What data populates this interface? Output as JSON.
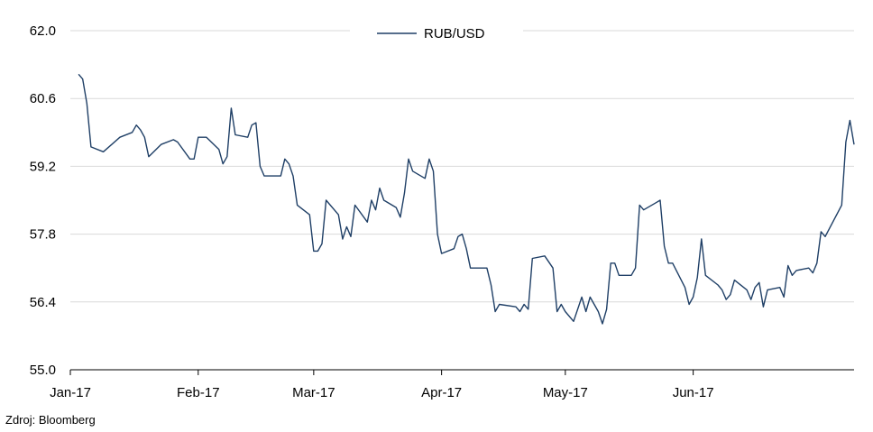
{
  "chart_data": {
    "type": "line",
    "series": [
      {
        "name": "RUB/USD",
        "color": "#1f3f66",
        "points": [
          [
            "2017-01-03",
            61.1
          ],
          [
            "2017-01-04",
            61.0
          ],
          [
            "2017-01-05",
            60.5
          ],
          [
            "2017-01-06",
            59.6
          ],
          [
            "2017-01-09",
            59.5
          ],
          [
            "2017-01-13",
            59.8
          ],
          [
            "2017-01-16",
            59.9
          ],
          [
            "2017-01-17",
            60.05
          ],
          [
            "2017-01-18",
            59.95
          ],
          [
            "2017-01-19",
            59.8
          ],
          [
            "2017-01-20",
            59.4
          ],
          [
            "2017-01-23",
            59.65
          ],
          [
            "2017-01-26",
            59.75
          ],
          [
            "2017-01-27",
            59.7
          ],
          [
            "2017-01-30",
            59.35
          ],
          [
            "2017-01-31",
            59.35
          ],
          [
            "2017-02-01",
            59.8
          ],
          [
            "2017-02-03",
            59.8
          ],
          [
            "2017-02-06",
            59.55
          ],
          [
            "2017-02-07",
            59.25
          ],
          [
            "2017-02-08",
            59.4
          ],
          [
            "2017-02-09",
            60.4
          ],
          [
            "2017-02-10",
            59.85
          ],
          [
            "2017-02-13",
            59.8
          ],
          [
            "2017-02-14",
            60.05
          ],
          [
            "2017-02-15",
            60.1
          ],
          [
            "2017-02-16",
            59.2
          ],
          [
            "2017-02-17",
            59.0
          ],
          [
            "2017-02-20",
            59.0
          ],
          [
            "2017-02-21",
            59.0
          ],
          [
            "2017-02-22",
            59.35
          ],
          [
            "2017-02-23",
            59.25
          ],
          [
            "2017-02-24",
            59.0
          ],
          [
            "2017-02-25",
            58.4
          ],
          [
            "2017-02-28",
            58.2
          ],
          [
            "2017-03-01",
            57.45
          ],
          [
            "2017-03-02",
            57.45
          ],
          [
            "2017-03-03",
            57.6
          ],
          [
            "2017-03-04",
            58.5
          ],
          [
            "2017-03-07",
            58.2
          ],
          [
            "2017-03-08",
            57.7
          ],
          [
            "2017-03-09",
            57.95
          ],
          [
            "2017-03-10",
            57.75
          ],
          [
            "2017-03-11",
            58.4
          ],
          [
            "2017-03-14",
            58.05
          ],
          [
            "2017-03-15",
            58.5
          ],
          [
            "2017-03-16",
            58.3
          ],
          [
            "2017-03-17",
            58.75
          ],
          [
            "2017-03-18",
            58.5
          ],
          [
            "2017-03-21",
            58.35
          ],
          [
            "2017-03-22",
            58.15
          ],
          [
            "2017-03-23",
            58.65
          ],
          [
            "2017-03-24",
            59.35
          ],
          [
            "2017-03-25",
            59.1
          ],
          [
            "2017-03-28",
            58.95
          ],
          [
            "2017-03-29",
            59.35
          ],
          [
            "2017-03-30",
            59.1
          ],
          [
            "2017-03-31",
            57.8
          ],
          [
            "2017-04-01",
            57.4
          ],
          [
            "2017-04-04",
            57.5
          ],
          [
            "2017-04-05",
            57.75
          ],
          [
            "2017-04-06",
            57.8
          ],
          [
            "2017-04-07",
            57.5
          ],
          [
            "2017-04-08",
            57.1
          ],
          [
            "2017-04-11",
            57.1
          ],
          [
            "2017-04-12",
            57.1
          ],
          [
            "2017-04-13",
            56.75
          ],
          [
            "2017-04-14",
            56.2
          ],
          [
            "2017-04-15",
            56.35
          ],
          [
            "2017-04-19",
            56.3
          ],
          [
            "2017-04-20",
            56.2
          ],
          [
            "2017-04-21",
            56.35
          ],
          [
            "2017-04-22",
            56.25
          ],
          [
            "2017-04-23",
            57.3
          ],
          [
            "2017-04-26",
            57.35
          ],
          [
            "2017-04-28",
            57.1
          ],
          [
            "2017-04-29",
            56.2
          ],
          [
            "2017-04-30",
            56.35
          ],
          [
            "2017-05-01",
            56.2
          ],
          [
            "2017-05-03",
            56.0
          ],
          [
            "2017-05-05",
            56.5
          ],
          [
            "2017-05-06",
            56.2
          ],
          [
            "2017-05-07",
            56.5
          ],
          [
            "2017-05-09",
            56.2
          ],
          [
            "2017-05-10",
            55.95
          ],
          [
            "2017-05-11",
            56.25
          ],
          [
            "2017-05-12",
            57.2
          ],
          [
            "2017-05-13",
            57.2
          ],
          [
            "2017-05-14",
            56.95
          ],
          [
            "2017-05-17",
            56.95
          ],
          [
            "2017-05-18",
            57.1
          ],
          [
            "2017-05-19",
            58.4
          ],
          [
            "2017-05-20",
            58.3
          ],
          [
            "2017-05-23",
            58.45
          ],
          [
            "2017-05-24",
            58.5
          ],
          [
            "2017-05-25",
            57.55
          ],
          [
            "2017-05-26",
            57.2
          ],
          [
            "2017-05-27",
            57.2
          ],
          [
            "2017-05-30",
            56.7
          ],
          [
            "2017-05-31",
            56.35
          ],
          [
            "2017-06-01",
            56.5
          ],
          [
            "2017-06-02",
            56.9
          ],
          [
            "2017-06-03",
            57.7
          ],
          [
            "2017-06-04",
            56.95
          ],
          [
            "2017-06-07",
            56.75
          ],
          [
            "2017-06-08",
            56.65
          ],
          [
            "2017-06-09",
            56.45
          ],
          [
            "2017-06-10",
            56.55
          ],
          [
            "2017-06-11",
            56.85
          ],
          [
            "2017-06-14",
            56.65
          ],
          [
            "2017-06-15",
            56.45
          ],
          [
            "2017-06-16",
            56.7
          ],
          [
            "2017-06-17",
            56.8
          ],
          [
            "2017-06-18",
            56.3
          ],
          [
            "2017-06-19",
            56.65
          ],
          [
            "2017-06-22",
            56.7
          ],
          [
            "2017-06-23",
            56.5
          ],
          [
            "2017-06-24",
            57.15
          ],
          [
            "2017-06-25",
            56.95
          ],
          [
            "2017-06-26",
            57.05
          ],
          [
            "2017-06-29",
            57.1
          ],
          [
            "2017-06-30",
            57.0
          ],
          [
            "2017-07-01",
            57.2
          ],
          [
            "2017-07-02",
            57.85
          ],
          [
            "2017-07-03",
            57.75
          ],
          [
            "2017-07-07",
            58.4
          ],
          [
            "2017-07-08",
            59.7
          ],
          [
            "2017-07-09",
            60.15
          ],
          [
            "2017-07-10",
            59.65
          ]
        ]
      }
    ],
    "x_tick_labels": [
      "Jan-17",
      "Feb-17",
      "Mar-17",
      "Apr-17",
      "May-17",
      "Jun-17"
    ],
    "x_tick_dates": [
      "2017-01-01",
      "2017-02-01",
      "2017-03-01",
      "2017-04-01",
      "2017-05-01",
      "2017-06-01"
    ],
    "xlim": [
      "2017-01-01",
      "2017-07-10"
    ],
    "y_ticks": [
      55.0,
      56.4,
      57.8,
      59.2,
      60.6,
      62.0
    ],
    "y_tick_labels": [
      "55.0",
      "56.4",
      "57.8",
      "59.2",
      "60.6",
      "62.0"
    ],
    "ylim": [
      55.0,
      62.0
    ],
    "grid": "horizontal",
    "legend_position": "top-center",
    "axis_color": "#000000",
    "grid_color": "#d9d9d9"
  },
  "source_note": "Zdroj: Bloomberg"
}
